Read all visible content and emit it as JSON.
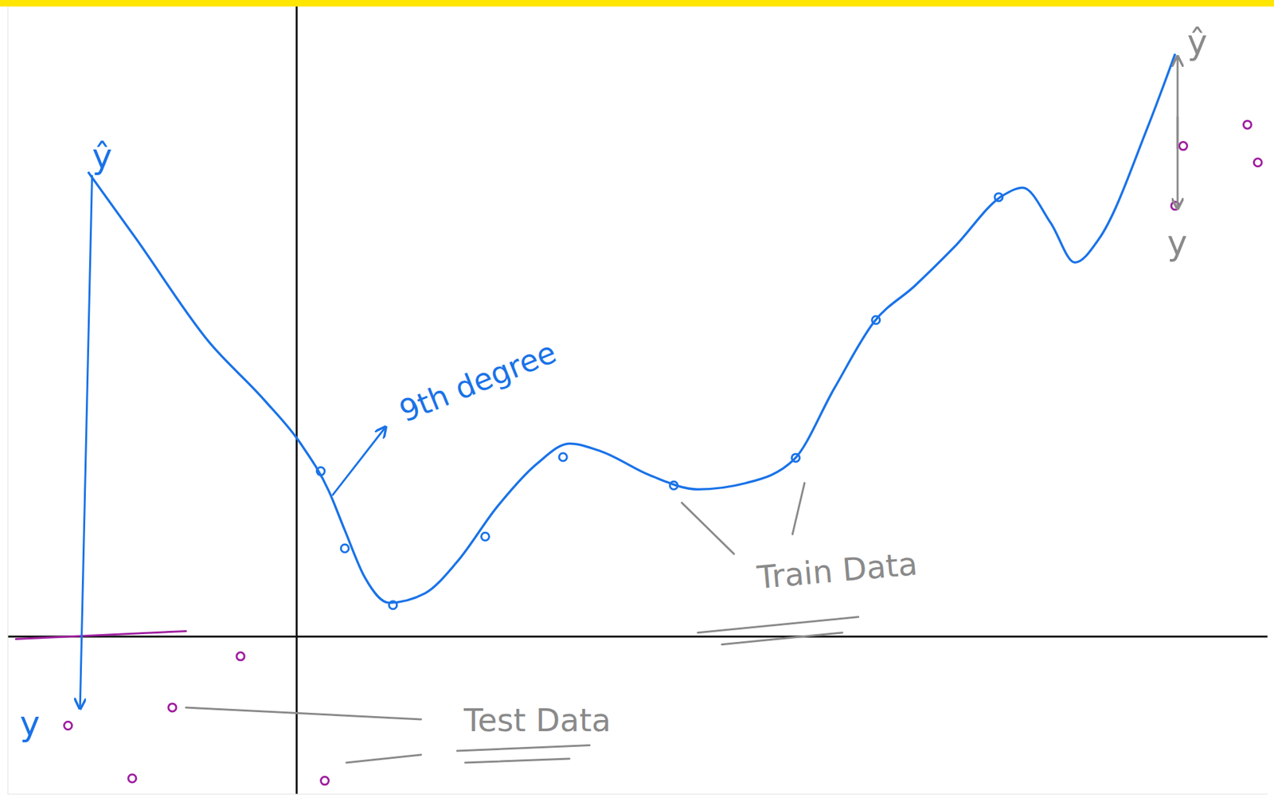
{
  "chart_data": {
    "type": "line",
    "tick_labels": false,
    "xlim": [
      -3.6,
      12.1
    ],
    "ylim": [
      -2,
      8
    ],
    "annotations": [
      "ŷ",
      "y"
    ],
    "series": [
      {
        "name": "9th degree",
        "type": "line",
        "color": "#1a73e8",
        "line_style": "solid",
        "x": [
          -2.6,
          -2.0,
          -1.1,
          -0.4,
          0.05,
          0.4,
          0.6,
          0.85,
          1.15,
          1.6,
          2.0,
          2.5,
          3.0,
          3.4,
          3.8,
          4.4,
          5.0,
          5.6,
          6.2,
          6.7,
          7.2,
          7.7,
          8.2,
          8.8,
          9.05,
          9.4,
          9.7,
          10.0,
          10.6,
          10.95
        ],
        "values": [
          5.9,
          5.05,
          3.75,
          3.0,
          2.45,
          1.85,
          1.35,
          0.75,
          0.43,
          0.55,
          0.95,
          1.65,
          2.2,
          2.45,
          2.35,
          2.05,
          1.87,
          1.95,
          2.25,
          3.15,
          4.0,
          4.45,
          4.95,
          5.6,
          5.7,
          5.25,
          4.75,
          5.05,
          6.45,
          7.4
        ]
      },
      {
        "name": "Train Data",
        "type": "scatter",
        "color": "#1a73e8",
        "marker": "circle",
        "x": [
          0.3,
          0.6,
          1.2,
          2.35,
          3.32,
          4.7,
          6.22,
          7.22,
          8.75
        ],
        "values": [
          2.1,
          1.12,
          0.4,
          1.27,
          2.28,
          1.92,
          2.27,
          4.02,
          5.58
        ]
      },
      {
        "name": "Test Data",
        "type": "scatter",
        "color": "#a020a0",
        "marker": "circle",
        "x": [
          -0.7,
          -1.55,
          -2.85,
          -2.05,
          0.35,
          10.95,
          11.05,
          11.85,
          11.98
        ],
        "values": [
          -0.25,
          -0.9,
          -1.13,
          -1.8,
          -1.83,
          5.47,
          6.23,
          6.5,
          6.02
        ]
      }
    ]
  }
}
